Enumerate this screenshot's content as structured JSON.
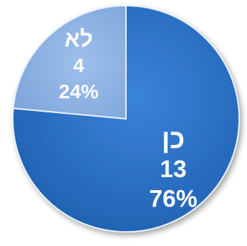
{
  "chart_data": {
    "type": "pie",
    "title": "",
    "start": "top",
    "direction": "clockwise",
    "slices": [
      {
        "name": "כן",
        "value": 13,
        "percent": "76%",
        "color": "#2b6fc4"
      },
      {
        "name": "לא",
        "value": 4,
        "percent": "24%",
        "color": "#89aee3"
      }
    ],
    "legend": "none",
    "data_labels": "inside, category-value-percent"
  }
}
